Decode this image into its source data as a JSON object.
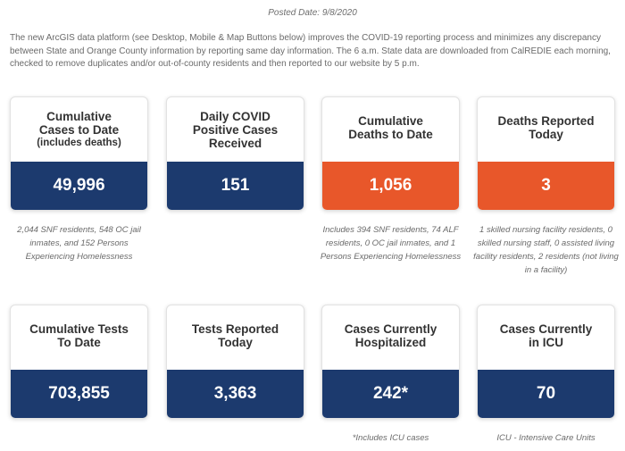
{
  "posted_date": "Posted Date: 9/8/2020",
  "intro": "The new ArcGIS data platform (see Desktop, Mobile & Map Buttons below) improves the COVID-19 reporting process and minimizes any discrepancy between State and Orange County information by reporting same day information. The 6 a.m. State data are downloaded from CalREDIE each morning, checked to remove duplicates and/or out-of-county residents and then reported to our website by 5 p.m.",
  "colors": {
    "navy": "#1c3a6e",
    "orange": "#e8572a"
  },
  "cards": [
    {
      "title": "Cumulative Cases to Date",
      "subtitle": "(includes deaths)",
      "value": "49,996",
      "note": "2,044 SNF residents, 548 OC jail inmates, and 152 Persons Experiencing Homelessness"
    },
    {
      "title": "Daily COVID Positive Cases Received",
      "subtitle": "",
      "value": "151",
      "note": ""
    },
    {
      "title": "Cumulative Deaths to Date",
      "subtitle": "",
      "value": "1,056",
      "note": "Includes 394 SNF residents, 74 ALF residents, 0 OC jail inmates, and 1 Persons Experiencing Homelessness"
    },
    {
      "title": "Deaths Reported Today",
      "subtitle": "",
      "value": "3",
      "note": "1 skilled nursing facility residents, 0 skilled nursing staff, 0 assisted living facility residents, 2 residents (not living in a facility)"
    },
    {
      "title": "Cumulative Tests To Date",
      "subtitle": "",
      "value": "703,855",
      "note": ""
    },
    {
      "title": "Tests Reported Today",
      "subtitle": "",
      "value": "3,363",
      "note": ""
    },
    {
      "title": "Cases Currently Hospitalized",
      "subtitle": "",
      "value": "242*",
      "note": "*Includes ICU cases"
    },
    {
      "title": "Cases Currently in ICU",
      "subtitle": "",
      "value": "70",
      "note": "ICU - Intensive Care Units"
    }
  ]
}
